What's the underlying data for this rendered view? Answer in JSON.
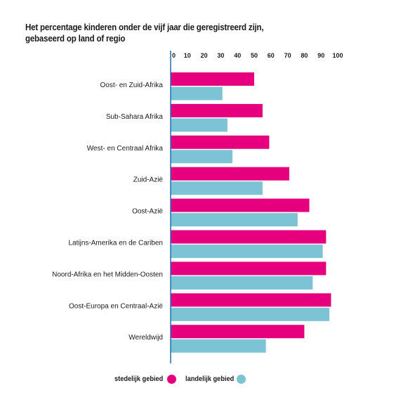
{
  "chart_data": {
    "type": "bar",
    "orientation": "horizontal",
    "title_line1": "Het percentage kinderen onder de vijf jaar die geregistreerd zijn,",
    "title_line2": "gebaseerd op land of regio",
    "categories": [
      "Oost- en Zuid-Afrika",
      "Sub-Sahara Afrika",
      "West- en Centraal Afrika",
      "Zuid-Azië",
      "Oost-Azië",
      "Latijns-Amerika en de Cariben",
      "Noord-Afrika en het Midden-Oosten",
      "Oost-Europa en Centraal-Azië",
      "Wereldwijd"
    ],
    "series": [
      {
        "name": "stedelijk gebied",
        "color": "#e6007e",
        "values": [
          50,
          55,
          59,
          71,
          83,
          93,
          93,
          96,
          80
        ]
      },
      {
        "name": "landelijk gebied",
        "color": "#7dc3d6",
        "values": [
          31,
          34,
          37,
          55,
          76,
          91,
          85,
          95,
          57
        ]
      }
    ],
    "xlim": [
      0,
      100
    ],
    "x_ticks": [
      "0",
      "10",
      "20",
      "30",
      "40",
      "50",
      "60",
      "70",
      "80",
      "90",
      "100"
    ],
    "axis_color": "#1f6fae"
  }
}
